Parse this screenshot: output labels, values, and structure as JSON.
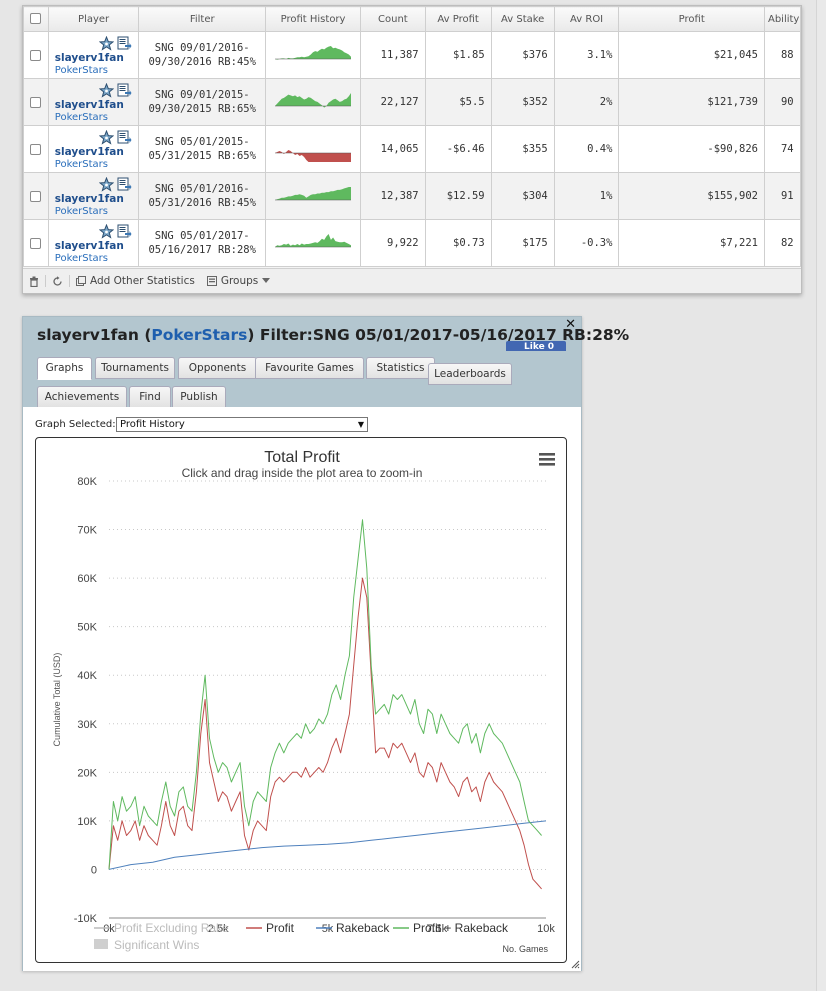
{
  "table": {
    "headers": {
      "player": "Player",
      "filter": "Filter",
      "profit_history": "Profit History",
      "count": "Count",
      "av_profit": "Av Profit",
      "av_stake": "Av Stake",
      "av_roi": "Av ROI",
      "profit": "Profit",
      "ability": "Ability"
    },
    "rows": [
      {
        "player": "slayerv1fan",
        "site": "PokerStars",
        "filter_line1": "SNG 09/01/2016-",
        "filter_line2": "09/30/2016 RB:45%",
        "count": "11,387",
        "av_profit": "$1.85",
        "av_stake": "$376",
        "av_roi": "3.1%",
        "profit": "$21,045",
        "ability": "88",
        "negative": false,
        "spark": [
          0,
          -1,
          0,
          1,
          1,
          0,
          2,
          1,
          1,
          2,
          3,
          3,
          4,
          3,
          4,
          5,
          8,
          12,
          14,
          13,
          16,
          18,
          17,
          20,
          22,
          23,
          19,
          20,
          18,
          17,
          15,
          12,
          10,
          8,
          4
        ]
      },
      {
        "player": "slayerv1fan",
        "site": "PokerStars",
        "filter_line1": "SNG 09/01/2015-",
        "filter_line2": "09/30/2015 RB:65%",
        "count": "22,127",
        "av_profit": "$5.5",
        "av_stake": "$352",
        "av_roi": "2%",
        "profit": "$121,739",
        "ability": "90",
        "negative": false,
        "spark": [
          0,
          3,
          6,
          9,
          10,
          12,
          14,
          13,
          12,
          13,
          11,
          12,
          10,
          8,
          9,
          11,
          10,
          8,
          6,
          5,
          3,
          1,
          -2,
          0,
          4,
          6,
          8,
          9,
          7,
          5,
          6,
          8,
          9,
          12,
          16
        ]
      },
      {
        "player": "slayerv1fan",
        "site": "PokerStars",
        "filter_line1": "SNG 05/01/2015-",
        "filter_line2": "05/31/2015 RB:65%",
        "count": "14,065",
        "av_profit": "-$6.46",
        "av_stake": "$355",
        "av_roi": "0.4%",
        "profit": "-$90,826",
        "ability": "74",
        "negative": true,
        "spark": [
          0,
          1,
          2,
          1,
          -1,
          1,
          3,
          2,
          0,
          -2,
          -1,
          -3,
          -2,
          -4,
          -7,
          -9,
          -10,
          -11,
          -12,
          -12,
          -13,
          -12,
          -13,
          -12,
          -12,
          -13,
          -12,
          -12,
          -13,
          -12,
          -13,
          -12,
          -12,
          -13,
          -12
        ]
      },
      {
        "player": "slayerv1fan",
        "site": "PokerStars",
        "filter_line1": "SNG 05/01/2016-",
        "filter_line2": "05/31/2016 RB:45%",
        "count": "12,387",
        "av_profit": "$12.59",
        "av_stake": "$304",
        "av_roi": "1%",
        "profit": "$155,902",
        "ability": "91",
        "negative": false,
        "spark": [
          0,
          1,
          2,
          3,
          3,
          4,
          5,
          5,
          6,
          7,
          7,
          8,
          7,
          6,
          3,
          5,
          7,
          8,
          8,
          9,
          9,
          10,
          10,
          11,
          11,
          12,
          12,
          13,
          14,
          14,
          15,
          16,
          17,
          18,
          18
        ]
      },
      {
        "player": "slayerv1fan",
        "site": "PokerStars",
        "filter_line1": "SNG 05/01/2017-",
        "filter_line2": "05/16/2017 RB:28%",
        "count": "9,922",
        "av_profit": "$0.73",
        "av_stake": "$175",
        "av_roi": "-0.3%",
        "profit": "$7,221",
        "ability": "82",
        "negative": false,
        "roi_negative": true,
        "spark": [
          0,
          3,
          2,
          3,
          5,
          4,
          6,
          2,
          4,
          3,
          5,
          3,
          6,
          4,
          5,
          5,
          6,
          7,
          8,
          7,
          10,
          14,
          12,
          18,
          22,
          12,
          16,
          10,
          9,
          8,
          8,
          9,
          7,
          5,
          3
        ]
      }
    ],
    "footer": {
      "add_other_statistics": "Add Other Statistics",
      "groups": "Groups"
    }
  },
  "detail": {
    "player": "slayerv1fan",
    "site": "PokerStars",
    "filter": "Filter:SNG 05/01/2017-05/16/2017 RB:28%",
    "like_label": "Like 0",
    "tabs": [
      "Graphs",
      "Tournaments",
      "Opponents",
      "Favourite Games",
      "Statistics",
      "Leaderboards",
      "Achievements",
      "Find",
      "Publish"
    ],
    "graph_selected_label": "Graph Selected:",
    "graph_selected_value": "Profit History"
  },
  "chart_data": {
    "type": "line",
    "title": "Total Profit",
    "subtitle": "Click and drag inside the plot area to zoom-in",
    "ylabel": "Cumulative Total (USD)",
    "xlabel": "No. Games",
    "ylim": [
      -10000,
      80000
    ],
    "xlim": [
      0,
      10000
    ],
    "y_ticks": [
      "-10K",
      "0",
      "10K",
      "20K",
      "30K",
      "40K",
      "50K",
      "60K",
      "70K",
      "80K"
    ],
    "x_ticks": [
      "0k",
      "2.5k",
      "5k",
      "7.5k",
      "10k"
    ],
    "legend": [
      "Profit Excluding Rake",
      "Profit",
      "Rakeback",
      "Profit + Rakeback"
    ],
    "legend_extra": "Significant Wins",
    "series": [
      {
        "name": "Profit",
        "color": "#c0504d",
        "x": [
          0,
          100,
          200,
          300,
          400,
          500,
          600,
          700,
          800,
          900,
          1000,
          1100,
          1200,
          1300,
          1400,
          1500,
          1600,
          1700,
          1800,
          1900,
          2000,
          2100,
          2200,
          2300,
          2400,
          2500,
          2600,
          2700,
          2800,
          2900,
          3000,
          3100,
          3200,
          3300,
          3400,
          3500,
          3600,
          3700,
          3800,
          3900,
          4000,
          4100,
          4200,
          4300,
          4400,
          4500,
          4600,
          4700,
          4800,
          4900,
          5000,
          5100,
          5200,
          5300,
          5400,
          5500,
          5600,
          5700,
          5800,
          5900,
          6000,
          6100,
          6200,
          6300,
          6400,
          6500,
          6600,
          6700,
          6800,
          6900,
          7000,
          7100,
          7200,
          7300,
          7400,
          7500,
          7600,
          7700,
          7800,
          7900,
          8000,
          8100,
          8200,
          8300,
          8400,
          8500,
          8600,
          8700,
          8800,
          8900,
          9000,
          9100,
          9200,
          9300,
          9400,
          9500,
          9600,
          9700,
          9800,
          9900
        ],
        "y": [
          0,
          9000,
          6000,
          10000,
          7000,
          8000,
          10000,
          6000,
          9000,
          7000,
          6000,
          5000,
          9000,
          14000,
          9000,
          7000,
          12000,
          13000,
          9000,
          8000,
          16000,
          28000,
          35000,
          22000,
          18000,
          14000,
          16000,
          15000,
          12000,
          14000,
          16000,
          7000,
          4000,
          8000,
          10000,
          9000,
          8000,
          15000,
          18000,
          19000,
          18000,
          19000,
          20000,
          20000,
          19000,
          21000,
          19000,
          20000,
          21000,
          20000,
          22000,
          25000,
          27000,
          24000,
          28000,
          32000,
          42000,
          52000,
          60000,
          56000,
          40000,
          24000,
          25000,
          25000,
          23000,
          26000,
          25000,
          26000,
          24000,
          22000,
          24000,
          20000,
          19000,
          22000,
          21000,
          18000,
          22000,
          20000,
          18000,
          17000,
          15000,
          18000,
          19000,
          16000,
          17000,
          14000,
          18000,
          20000,
          18000,
          17000,
          16000,
          14000,
          12000,
          10000,
          8000,
          5000,
          1000,
          -2000,
          -3000,
          -4000
        ]
      },
      {
        "name": "Rakeback",
        "color": "#4f81bd",
        "x": [
          0,
          500,
          1000,
          1500,
          2000,
          2500,
          3000,
          3500,
          4000,
          4500,
          5000,
          5500,
          6000,
          6500,
          7000,
          7500,
          8000,
          8500,
          9000,
          9500,
          10000
        ],
        "y": [
          0,
          1000,
          1500,
          2500,
          3000,
          3500,
          4000,
          4500,
          4800,
          5000,
          5200,
          5500,
          6000,
          6500,
          7000,
          7500,
          8000,
          8500,
          9000,
          9500,
          10000
        ]
      },
      {
        "name": "Profit + Rakeback",
        "color": "#5fb95f",
        "x": [
          0,
          100,
          200,
          300,
          400,
          500,
          600,
          700,
          800,
          900,
          1000,
          1100,
          1200,
          1300,
          1400,
          1500,
          1600,
          1700,
          1800,
          1900,
          2000,
          2100,
          2200,
          2300,
          2400,
          2500,
          2600,
          2700,
          2800,
          2900,
          3000,
          3100,
          3200,
          3300,
          3400,
          3500,
          3600,
          3700,
          3800,
          3900,
          4000,
          4100,
          4200,
          4300,
          4400,
          4500,
          4600,
          4700,
          4800,
          4900,
          5000,
          5100,
          5200,
          5300,
          5400,
          5500,
          5600,
          5700,
          5800,
          5900,
          6000,
          6100,
          6200,
          6300,
          6400,
          6500,
          6600,
          6700,
          6800,
          6900,
          7000,
          7100,
          7200,
          7300,
          7400,
          7500,
          7600,
          7700,
          7800,
          7900,
          8000,
          8100,
          8200,
          8300,
          8400,
          8500,
          8600,
          8700,
          8800,
          8900,
          9000,
          9100,
          9200,
          9300,
          9400,
          9500,
          9600,
          9700,
          9800,
          9900
        ],
        "y": [
          0,
          14000,
          10000,
          15000,
          12000,
          13000,
          15000,
          9000,
          13000,
          11000,
          10000,
          9000,
          14000,
          18000,
          13000,
          11000,
          16000,
          17000,
          13000,
          12000,
          20000,
          32000,
          40000,
          27000,
          23000,
          20000,
          22000,
          21000,
          18000,
          20000,
          22000,
          13000,
          9000,
          14000,
          16000,
          15000,
          14000,
          21000,
          24000,
          26000,
          24000,
          26000,
          27000,
          28000,
          27000,
          30000,
          28000,
          29000,
          31000,
          30000,
          32000,
          36000,
          38000,
          35000,
          40000,
          44000,
          56000,
          64000,
          72000,
          62000,
          42000,
          32000,
          33000,
          34000,
          32000,
          36000,
          35000,
          36000,
          34000,
          32000,
          35000,
          30000,
          28000,
          33000,
          32000,
          28000,
          32000,
          30000,
          28000,
          27000,
          26000,
          29000,
          30000,
          26000,
          28000,
          24000,
          28000,
          30000,
          28000,
          27000,
          26000,
          24000,
          22000,
          20000,
          18000,
          14000,
          10000,
          9000,
          8000,
          7000
        ]
      }
    ]
  }
}
